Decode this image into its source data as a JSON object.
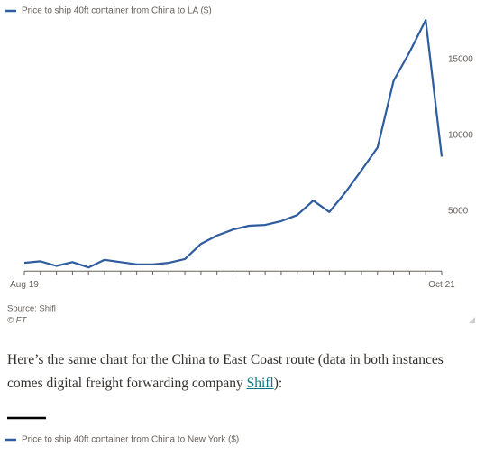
{
  "chart_data": {
    "type": "line",
    "legend_label": "Price to ship 40ft container from China to LA ($)",
    "categories": [
      "Aug 19",
      null,
      null,
      null,
      null,
      null,
      null,
      null,
      null,
      null,
      null,
      null,
      null,
      null,
      null,
      null,
      null,
      null,
      null,
      null,
      null,
      null,
      null,
      null,
      null,
      null,
      "Oct 21"
    ],
    "values": [
      1600,
      1700,
      1400,
      1650,
      1300,
      1800,
      1650,
      1500,
      1500,
      1600,
      1850,
      2850,
      3400,
      3800,
      4050,
      4100,
      4350,
      4750,
      5700,
      4950,
      6250,
      7700,
      9200,
      13600,
      15500,
      17600,
      8600
    ],
    "color": "#2e5c9e",
    "ylim": [
      1000,
      18000
    ],
    "yticks": [
      5000,
      10000,
      15000
    ],
    "y_axis_side": "right",
    "grid": false,
    "source": "Source: Shifl",
    "credit": "© FT"
  },
  "paragraph": {
    "before": "Here’s the same chart for the China to East Coast route (data in both instances comes digital freight forwarding company ",
    "link": "Shifl",
    "after": "):"
  },
  "next_chart": {
    "legend_label": "Price to ship 40ft container from China to New York ($)"
  }
}
